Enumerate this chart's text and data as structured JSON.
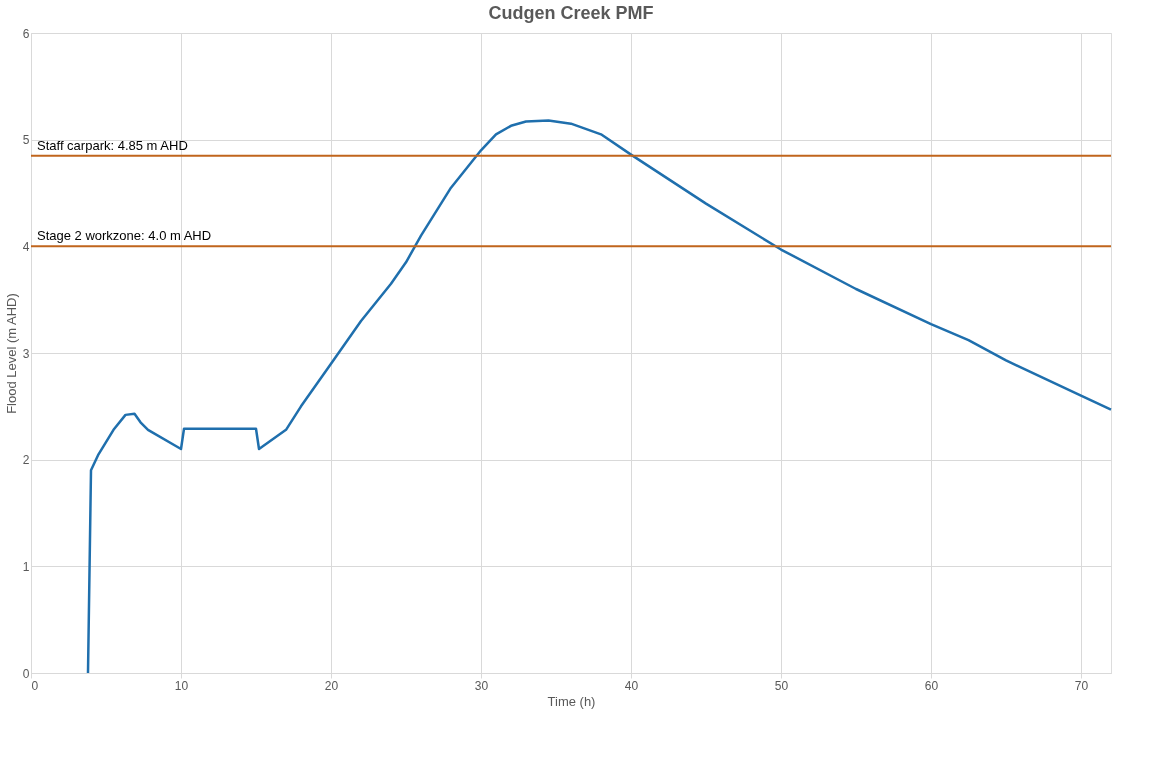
{
  "chart_data": {
    "type": "line",
    "title": "Cudgen Creek PMF",
    "xlabel": "Time (h)",
    "ylabel": "Flood Level (m AHD)",
    "x": [
      3.8,
      4.0,
      4.5,
      5.5,
      6.3,
      6.9,
      7.3,
      7.8,
      10.0,
      10.2,
      15.0,
      15.2,
      17.0,
      18.0,
      20.0,
      22.0,
      24.0,
      25.0,
      26.0,
      28.0,
      30.0,
      31.0,
      32.0,
      33.0,
      34.5,
      36.0,
      38.0,
      40.0,
      45.0,
      50.0,
      55.0,
      60.0,
      62.5,
      65.0,
      70.0,
      72.0
    ],
    "series": [
      {
        "color": "#1f6fad",
        "values": [
          0,
          1.9,
          2.05,
          2.28,
          2.42,
          2.43,
          2.35,
          2.28,
          2.1,
          2.29,
          2.29,
          2.1,
          2.28,
          2.5,
          2.9,
          3.3,
          3.65,
          3.85,
          4.1,
          4.55,
          4.9,
          5.05,
          5.13,
          5.17,
          5.18,
          5.15,
          5.05,
          4.86,
          4.4,
          3.97,
          3.6,
          3.27,
          3.12,
          2.93,
          2.6,
          2.47
        ]
      }
    ],
    "xlim": [
      0,
      72
    ],
    "xticks": [
      0,
      10,
      20,
      30,
      40,
      50,
      60,
      70
    ],
    "ylim": [
      0,
      6
    ],
    "yticks": [
      0,
      1,
      2,
      3,
      4,
      5,
      6
    ],
    "grid": true,
    "marker": "none",
    "line_style": "solid",
    "ref_lines": [
      {
        "axis": "y",
        "value": 4.85,
        "label": "Staff carpark: 4.85 m AHD",
        "color": "#c0651c"
      },
      {
        "axis": "y",
        "value": 4.0,
        "label": "Stage 2 workzone: 4.0 m AHD",
        "color": "#c0651c"
      }
    ]
  }
}
